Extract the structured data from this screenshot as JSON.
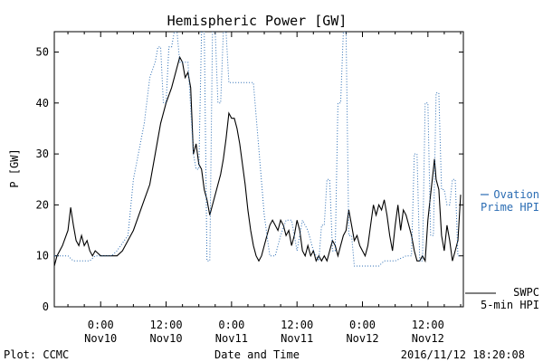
{
  "chart_data": {
    "type": "line",
    "title": "Hemispheric Power [GW]",
    "xlabel": "Date and Time",
    "ylabel": "P [GW]",
    "ylim": [
      0,
      54
    ],
    "xlim_hours_from_nov10_0000": [
      -8.5,
      66.5
    ],
    "yticks": [
      0,
      10,
      20,
      30,
      40,
      50
    ],
    "xticks": [
      {
        "h": 0,
        "time": "0:00",
        "date": "Nov10"
      },
      {
        "h": 12,
        "time": "12:00",
        "date": "Nov10"
      },
      {
        "h": 24,
        "time": "0:00",
        "date": "Nov11"
      },
      {
        "h": 36,
        "time": "12:00",
        "date": "Nov11"
      },
      {
        "h": 48,
        "time": "0:00",
        "date": "Nov12"
      },
      {
        "h": 60,
        "time": "12:00",
        "date": "Nov12"
      }
    ],
    "grid": false,
    "series": [
      {
        "name": "SWPC 5-min HPI",
        "color": "#000000",
        "style": "solid",
        "points": [
          [
            -8.5,
            8
          ],
          [
            -8,
            10
          ],
          [
            -7,
            12
          ],
          [
            -6,
            15
          ],
          [
            -5.5,
            19.5
          ],
          [
            -5,
            16
          ],
          [
            -4.5,
            13
          ],
          [
            -4,
            12
          ],
          [
            -3.5,
            14
          ],
          [
            -3,
            12
          ],
          [
            -2.5,
            13
          ],
          [
            -2,
            11
          ],
          [
            -1.5,
            10
          ],
          [
            -1,
            11
          ],
          [
            0,
            10
          ],
          [
            1,
            10
          ],
          [
            2,
            10
          ],
          [
            3,
            10
          ],
          [
            4,
            11
          ],
          [
            5,
            13
          ],
          [
            6,
            15
          ],
          [
            7,
            18
          ],
          [
            8,
            21
          ],
          [
            9,
            24
          ],
          [
            10,
            30
          ],
          [
            11,
            36
          ],
          [
            12,
            40
          ],
          [
            13,
            43
          ],
          [
            14,
            47
          ],
          [
            14.5,
            49
          ],
          [
            15,
            48
          ],
          [
            15.5,
            45
          ],
          [
            16,
            46
          ],
          [
            16.5,
            43
          ],
          [
            17,
            30
          ],
          [
            17.5,
            32
          ],
          [
            18,
            28
          ],
          [
            18.5,
            27
          ],
          [
            19,
            23
          ],
          [
            19.5,
            21
          ],
          [
            20,
            18
          ],
          [
            20.5,
            20
          ],
          [
            21,
            22
          ],
          [
            21.5,
            24
          ],
          [
            22,
            26
          ],
          [
            22.5,
            29
          ],
          [
            23,
            33
          ],
          [
            23.5,
            38
          ],
          [
            24,
            37
          ],
          [
            24.5,
            37
          ],
          [
            25,
            35
          ],
          [
            25.5,
            32
          ],
          [
            26,
            28
          ],
          [
            26.5,
            24
          ],
          [
            27,
            19
          ],
          [
            27.5,
            15
          ],
          [
            28,
            12
          ],
          [
            28.5,
            10
          ],
          [
            29,
            9
          ],
          [
            29.5,
            10
          ],
          [
            30,
            12
          ],
          [
            30.5,
            14
          ],
          [
            31,
            16
          ],
          [
            31.5,
            17
          ],
          [
            32,
            16
          ],
          [
            32.5,
            15
          ],
          [
            33,
            17
          ],
          [
            33.5,
            16
          ],
          [
            34,
            14
          ],
          [
            34.5,
            15
          ],
          [
            35,
            12
          ],
          [
            35.5,
            14
          ],
          [
            36,
            17
          ],
          [
            36.5,
            15
          ],
          [
            37,
            11
          ],
          [
            37.5,
            10
          ],
          [
            38,
            12
          ],
          [
            38.5,
            10
          ],
          [
            39,
            11
          ],
          [
            39.5,
            9
          ],
          [
            40,
            10
          ],
          [
            40.5,
            9
          ],
          [
            41,
            10
          ],
          [
            41.5,
            9
          ],
          [
            42,
            11
          ],
          [
            42.5,
            13
          ],
          [
            43,
            12
          ],
          [
            43.5,
            10
          ],
          [
            44,
            12
          ],
          [
            44.5,
            14
          ],
          [
            45,
            15
          ],
          [
            45.5,
            19
          ],
          [
            46,
            16
          ],
          [
            46.5,
            13
          ],
          [
            47,
            14
          ],
          [
            47.5,
            12
          ],
          [
            48,
            11
          ],
          [
            48.5,
            10
          ],
          [
            49,
            12
          ],
          [
            49.5,
            16
          ],
          [
            50,
            20
          ],
          [
            50.5,
            18
          ],
          [
            51,
            20
          ],
          [
            51.5,
            19
          ],
          [
            52,
            21
          ],
          [
            52.5,
            18
          ],
          [
            53,
            14
          ],
          [
            53.5,
            11
          ],
          [
            54,
            16
          ],
          [
            54.5,
            20
          ],
          [
            55,
            15
          ],
          [
            55.5,
            19
          ],
          [
            56,
            18
          ],
          [
            56.5,
            16
          ],
          [
            57,
            14
          ],
          [
            57.5,
            11
          ],
          [
            58,
            9
          ],
          [
            58.5,
            9
          ],
          [
            59,
            10
          ],
          [
            59.5,
            9
          ],
          [
            60,
            17
          ],
          [
            60.5,
            22
          ],
          [
            61,
            27
          ],
          [
            61.2,
            29
          ],
          [
            61.5,
            25
          ],
          [
            62,
            23
          ],
          [
            62.5,
            14
          ],
          [
            63,
            11
          ],
          [
            63.5,
            16
          ],
          [
            64,
            13
          ],
          [
            64.5,
            9
          ],
          [
            65,
            11
          ],
          [
            65.5,
            13
          ],
          [
            66,
            22
          ]
        ]
      },
      {
        "name": "Ovation Prime HPI",
        "color": "#2a6cb3",
        "style": "dotted",
        "points": [
          [
            -8.5,
            10
          ],
          [
            -6,
            10
          ],
          [
            -5,
            9
          ],
          [
            -2,
            9
          ],
          [
            -1,
            10
          ],
          [
            2,
            10
          ],
          [
            3,
            11
          ],
          [
            5,
            14
          ],
          [
            6,
            25
          ],
          [
            8,
            36
          ],
          [
            9,
            45
          ],
          [
            10,
            48
          ],
          [
            10.5,
            51
          ],
          [
            11,
            51
          ],
          [
            11.5,
            40
          ],
          [
            12,
            40
          ],
          [
            12.5,
            51
          ],
          [
            13,
            51
          ],
          [
            13.5,
            54
          ],
          [
            14,
            54
          ],
          [
            14.5,
            48
          ],
          [
            16,
            48
          ],
          [
            17,
            30
          ],
          [
            17.5,
            27
          ],
          [
            18,
            27
          ],
          [
            18.5,
            54
          ],
          [
            19,
            54
          ],
          [
            19.5,
            9
          ],
          [
            20,
            9
          ],
          [
            20.5,
            54
          ],
          [
            21,
            54
          ],
          [
            21.5,
            40
          ],
          [
            22,
            40
          ],
          [
            22.5,
            54
          ],
          [
            23,
            54
          ],
          [
            23.5,
            44
          ],
          [
            28,
            44
          ],
          [
            30,
            18
          ],
          [
            31,
            10
          ],
          [
            32,
            10
          ],
          [
            33,
            14
          ],
          [
            34,
            17
          ],
          [
            35,
            17
          ],
          [
            36,
            11
          ],
          [
            37,
            17
          ],
          [
            38,
            15
          ],
          [
            39,
            11
          ],
          [
            40,
            9
          ],
          [
            40.5,
            16
          ],
          [
            41,
            16
          ],
          [
            41.5,
            25
          ],
          [
            42,
            25
          ],
          [
            42.5,
            11
          ],
          [
            43,
            11
          ],
          [
            43.5,
            40
          ],
          [
            44,
            40
          ],
          [
            44.5,
            54
          ],
          [
            45,
            54
          ],
          [
            45.5,
            14
          ],
          [
            46,
            14
          ],
          [
            46.5,
            8
          ],
          [
            51,
            8
          ],
          [
            52,
            9
          ],
          [
            54,
            9
          ],
          [
            56,
            10
          ],
          [
            57,
            10
          ],
          [
            57.5,
            30
          ],
          [
            58,
            30
          ],
          [
            58.5,
            9
          ],
          [
            59,
            9
          ],
          [
            59.5,
            40
          ],
          [
            60,
            40
          ],
          [
            60.5,
            14
          ],
          [
            61,
            14
          ],
          [
            61.5,
            42
          ],
          [
            62,
            42
          ],
          [
            62.5,
            23
          ],
          [
            63,
            23
          ],
          [
            63.5,
            20
          ],
          [
            64,
            20
          ],
          [
            64.5,
            25
          ],
          [
            65,
            25
          ],
          [
            65.5,
            10
          ],
          [
            66,
            10
          ]
        ]
      }
    ],
    "legend": {
      "placement": "right",
      "entries": [
        {
          "series": "Ovation Prime HPI",
          "line1": "Ovation",
          "line2": "Prime HPI"
        },
        {
          "series": "SWPC 5-min HPI",
          "line1": "SWPC",
          "line2": "5-min HPI"
        }
      ]
    }
  },
  "footer": {
    "left": "Plot: CCMC",
    "right": "2016/11/12 18:20:08"
  }
}
